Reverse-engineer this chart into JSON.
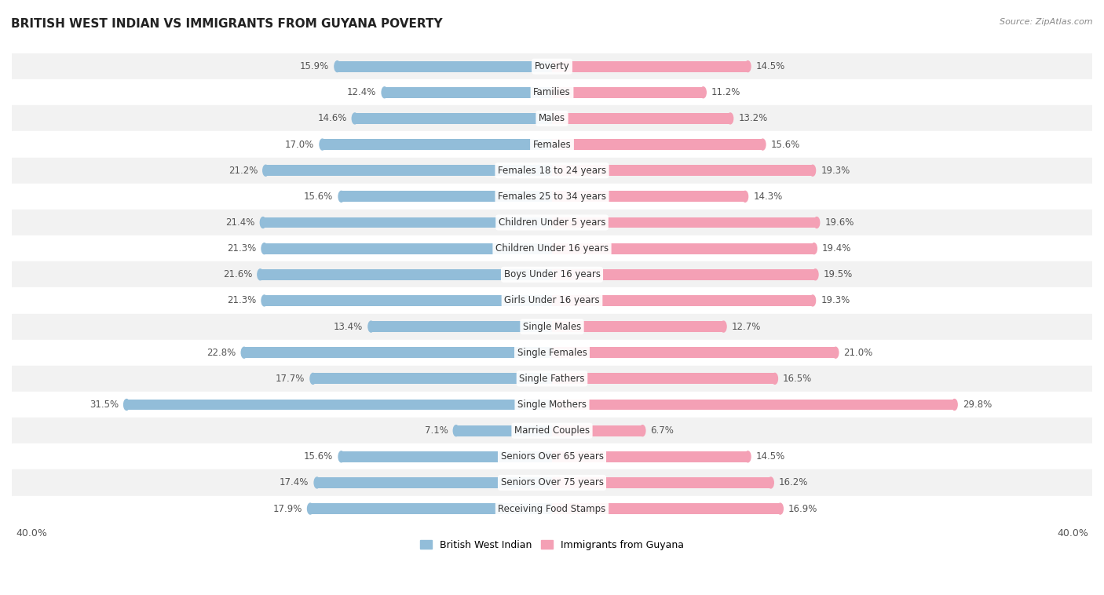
{
  "title": "BRITISH WEST INDIAN VS IMMIGRANTS FROM GUYANA POVERTY",
  "source": "Source: ZipAtlas.com",
  "categories": [
    "Poverty",
    "Families",
    "Males",
    "Females",
    "Females 18 to 24 years",
    "Females 25 to 34 years",
    "Children Under 5 years",
    "Children Under 16 years",
    "Boys Under 16 years",
    "Girls Under 16 years",
    "Single Males",
    "Single Females",
    "Single Fathers",
    "Single Mothers",
    "Married Couples",
    "Seniors Over 65 years",
    "Seniors Over 75 years",
    "Receiving Food Stamps"
  ],
  "left_values": [
    15.9,
    12.4,
    14.6,
    17.0,
    21.2,
    15.6,
    21.4,
    21.3,
    21.6,
    21.3,
    13.4,
    22.8,
    17.7,
    31.5,
    7.1,
    15.6,
    17.4,
    17.9
  ],
  "right_values": [
    14.5,
    11.2,
    13.2,
    15.6,
    19.3,
    14.3,
    19.6,
    19.4,
    19.5,
    19.3,
    12.7,
    21.0,
    16.5,
    29.8,
    6.7,
    14.5,
    16.2,
    16.9
  ],
  "left_color": "#92bdd9",
  "right_color": "#f4a0b5",
  "left_label": "British West Indian",
  "right_label": "Immigrants from Guyana",
  "xlim": 40.0,
  "background_color": "#ffffff",
  "row_bg_odd": "#f2f2f2",
  "row_bg_even": "#ffffff",
  "title_fontsize": 11,
  "label_fontsize": 8.5,
  "value_fontsize": 8.5,
  "source_fontsize": 8
}
